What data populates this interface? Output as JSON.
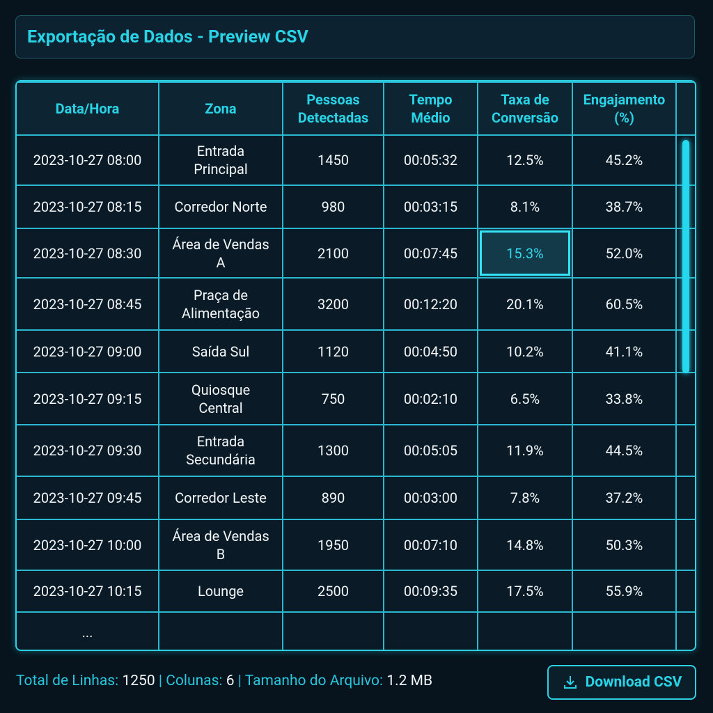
{
  "header": {
    "title": "Exportação de Dados - Preview CSV"
  },
  "table": {
    "columns": [
      "Data/Hora",
      "Zona",
      "Pessoas Detectadas",
      "Tempo Médio",
      "Taxa de Conversão",
      "Engajamento (%)"
    ],
    "rows": [
      [
        "2023-10-27 08:00",
        "Entrada Principal",
        "1450",
        "00:05:32",
        "12.5%",
        "45.2%"
      ],
      [
        "2023-10-27 08:15",
        "Corredor Norte",
        "980",
        "00:03:15",
        "8.1%",
        "38.7%"
      ],
      [
        "2023-10-27 08:30",
        "Área de Vendas A",
        "2100",
        "00:07:45",
        "15.3%",
        "52.0%"
      ],
      [
        "2023-10-27 08:45",
        "Praça de Alimentação",
        "3200",
        "00:12:20",
        "20.1%",
        "60.5%"
      ],
      [
        "2023-10-27 09:00",
        "Saída Sul",
        "1120",
        "00:04:50",
        "10.2%",
        "41.1%"
      ],
      [
        "2023-10-27 09:15",
        "Quiosque Central",
        "750",
        "00:02:10",
        "6.5%",
        "33.8%"
      ],
      [
        "2023-10-27 09:30",
        "Entrada Secundária",
        "1300",
        "00:05:05",
        "11.9%",
        "44.5%"
      ],
      [
        "2023-10-27 09:45",
        "Corredor Leste",
        "890",
        "00:03:00",
        "7.8%",
        "37.2%"
      ],
      [
        "2023-10-27 10:00",
        "Área de Vendas B",
        "1950",
        "00:07:10",
        "14.8%",
        "50.3%"
      ],
      [
        "2023-10-27 10:15",
        "Lounge",
        "2500",
        "00:09:35",
        "17.5%",
        "55.9%"
      ]
    ],
    "ellipsis": "..."
  },
  "footer": {
    "separator": "|",
    "items": [
      {
        "label": "Total de Linhas:",
        "value": "1250"
      },
      {
        "label": "Colunas:",
        "value": "6"
      },
      {
        "label": "Tamanho do Arquivo:",
        "value": "1.2 MB"
      }
    ],
    "button": "Download CSV"
  }
}
